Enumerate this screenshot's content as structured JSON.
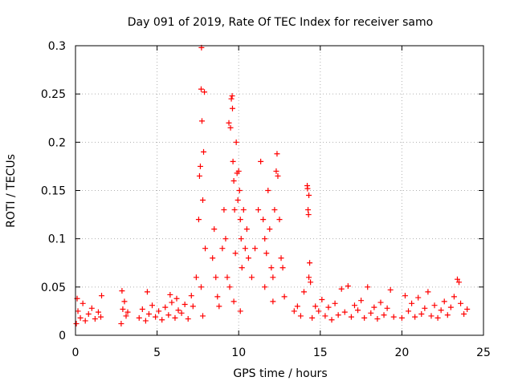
{
  "chart_data": {
    "type": "scatter",
    "title": "Day 091 of 2019, Rate Of TEC Index for receiver samo",
    "xlabel": "GPS time / hours",
    "ylabel": "ROTI / TECUs",
    "xlim": [
      0,
      25
    ],
    "ylim": [
      0,
      0.3
    ],
    "xticks": [
      0,
      5,
      10,
      15,
      20,
      25
    ],
    "xtick_labels": [
      "0",
      "5",
      "10",
      "15",
      "20",
      "25"
    ],
    "yticks": [
      0,
      0.05,
      0.1,
      0.15,
      0.2,
      0.25,
      0.3
    ],
    "ytick_labels": [
      "0",
      "0.05",
      "0.1",
      "0.15",
      "0.2",
      "0.25",
      "0.3"
    ],
    "grid": true,
    "marker": "+",
    "series_color": "#ff0000",
    "series": [
      {
        "name": "ROTI",
        "points": [
          [
            0.05,
            0.012
          ],
          [
            0.15,
            0.025
          ],
          [
            0.3,
            0.018
          ],
          [
            0.45,
            0.033
          ],
          [
            0.6,
            0.015
          ],
          [
            0.8,
            0.022
          ],
          [
            1.0,
            0.028
          ],
          [
            1.2,
            0.017
          ],
          [
            1.4,
            0.024
          ],
          [
            1.55,
            0.019
          ],
          [
            1.6,
            0.041
          ],
          [
            0.1,
            0.038
          ],
          [
            2.8,
            0.012
          ],
          [
            2.9,
            0.027
          ],
          [
            3.0,
            0.035
          ],
          [
            3.1,
            0.02
          ],
          [
            3.2,
            0.024
          ],
          [
            2.85,
            0.046
          ],
          [
            3.9,
            0.018
          ],
          [
            4.1,
            0.027
          ],
          [
            4.3,
            0.015
          ],
          [
            4.5,
            0.022
          ],
          [
            4.7,
            0.031
          ],
          [
            4.9,
            0.019
          ],
          [
            5.1,
            0.025
          ],
          [
            5.3,
            0.016
          ],
          [
            5.5,
            0.029
          ],
          [
            5.7,
            0.021
          ],
          [
            5.9,
            0.034
          ],
          [
            6.1,
            0.018
          ],
          [
            6.3,
            0.026
          ],
          [
            6.5,
            0.023
          ],
          [
            6.7,
            0.032
          ],
          [
            6.9,
            0.017
          ],
          [
            7.1,
            0.041
          ],
          [
            4.4,
            0.045
          ],
          [
            5.8,
            0.042
          ],
          [
            6.2,
            0.038
          ],
          [
            7.2,
            0.03
          ],
          [
            7.4,
            0.06
          ],
          [
            7.55,
            0.12
          ],
          [
            7.6,
            0.165
          ],
          [
            7.65,
            0.175
          ],
          [
            7.7,
            0.255
          ],
          [
            7.72,
            0.298
          ],
          [
            7.75,
            0.222
          ],
          [
            7.8,
            0.14
          ],
          [
            7.85,
            0.19
          ],
          [
            7.9,
            0.252
          ],
          [
            7.95,
            0.09
          ],
          [
            7.7,
            0.05
          ],
          [
            7.8,
            0.02
          ],
          [
            8.4,
            0.08
          ],
          [
            8.5,
            0.11
          ],
          [
            8.6,
            0.06
          ],
          [
            8.7,
            0.04
          ],
          [
            8.8,
            0.03
          ],
          [
            9.0,
            0.09
          ],
          [
            9.1,
            0.13
          ],
          [
            9.2,
            0.1
          ],
          [
            9.3,
            0.06
          ],
          [
            9.4,
            0.22
          ],
          [
            9.5,
            0.215
          ],
          [
            9.55,
            0.245
          ],
          [
            9.6,
            0.248
          ],
          [
            9.62,
            0.235
          ],
          [
            9.65,
            0.18
          ],
          [
            9.7,
            0.16
          ],
          [
            9.75,
            0.13
          ],
          [
            9.8,
            0.085
          ],
          [
            9.85,
            0.2
          ],
          [
            9.9,
            0.168
          ],
          [
            9.95,
            0.14
          ],
          [
            10.0,
            0.17
          ],
          [
            10.05,
            0.15
          ],
          [
            10.1,
            0.12
          ],
          [
            10.15,
            0.1
          ],
          [
            10.2,
            0.07
          ],
          [
            10.3,
            0.13
          ],
          [
            10.4,
            0.09
          ],
          [
            10.5,
            0.11
          ],
          [
            10.6,
            0.08
          ],
          [
            10.8,
            0.06
          ],
          [
            11.0,
            0.09
          ],
          [
            9.45,
            0.05
          ],
          [
            9.7,
            0.035
          ],
          [
            10.1,
            0.025
          ],
          [
            11.2,
            0.13
          ],
          [
            11.35,
            0.18
          ],
          [
            11.5,
            0.12
          ],
          [
            11.6,
            0.1
          ],
          [
            11.7,
            0.085
          ],
          [
            11.8,
            0.15
          ],
          [
            11.9,
            0.11
          ],
          [
            12.0,
            0.07
          ],
          [
            12.1,
            0.06
          ],
          [
            12.2,
            0.13
          ],
          [
            12.3,
            0.17
          ],
          [
            12.35,
            0.188
          ],
          [
            12.4,
            0.165
          ],
          [
            12.5,
            0.12
          ],
          [
            12.6,
            0.08
          ],
          [
            12.7,
            0.07
          ],
          [
            12.8,
            0.04
          ],
          [
            11.6,
            0.05
          ],
          [
            12.1,
            0.035
          ],
          [
            13.4,
            0.025
          ],
          [
            13.6,
            0.03
          ],
          [
            13.8,
            0.02
          ],
          [
            14.0,
            0.045
          ],
          [
            14.2,
            0.155
          ],
          [
            14.22,
            0.152
          ],
          [
            14.25,
            0.13
          ],
          [
            14.28,
            0.125
          ],
          [
            14.3,
            0.145
          ],
          [
            14.35,
            0.075
          ],
          [
            14.4,
            0.055
          ],
          [
            14.3,
            0.06
          ],
          [
            14.5,
            0.018
          ],
          [
            14.7,
            0.03
          ],
          [
            14.9,
            0.025
          ],
          [
            15.1,
            0.037
          ],
          [
            15.3,
            0.02
          ],
          [
            15.5,
            0.029
          ],
          [
            15.7,
            0.016
          ],
          [
            15.9,
            0.033
          ],
          [
            16.1,
            0.021
          ],
          [
            16.3,
            0.048
          ],
          [
            16.5,
            0.024
          ],
          [
            16.7,
            0.051
          ],
          [
            16.9,
            0.019
          ],
          [
            17.1,
            0.031
          ],
          [
            17.3,
            0.026
          ],
          [
            17.5,
            0.036
          ],
          [
            17.7,
            0.018
          ],
          [
            17.9,
            0.05
          ],
          [
            18.1,
            0.023
          ],
          [
            18.3,
            0.029
          ],
          [
            18.5,
            0.017
          ],
          [
            18.7,
            0.034
          ],
          [
            18.9,
            0.021
          ],
          [
            19.1,
            0.028
          ],
          [
            19.3,
            0.047
          ],
          [
            19.5,
            0.019
          ],
          [
            20.0,
            0.018
          ],
          [
            20.2,
            0.041
          ],
          [
            20.4,
            0.025
          ],
          [
            20.6,
            0.033
          ],
          [
            20.8,
            0.019
          ],
          [
            21.0,
            0.039
          ],
          [
            21.2,
            0.022
          ],
          [
            21.4,
            0.028
          ],
          [
            21.6,
            0.045
          ],
          [
            21.8,
            0.02
          ],
          [
            22.0,
            0.031
          ],
          [
            22.2,
            0.018
          ],
          [
            22.4,
            0.026
          ],
          [
            22.6,
            0.035
          ],
          [
            22.8,
            0.021
          ],
          [
            23.0,
            0.029
          ],
          [
            23.2,
            0.04
          ],
          [
            23.4,
            0.058
          ],
          [
            23.5,
            0.055
          ],
          [
            23.6,
            0.033
          ],
          [
            23.8,
            0.022
          ],
          [
            24.0,
            0.027
          ]
        ]
      }
    ]
  }
}
